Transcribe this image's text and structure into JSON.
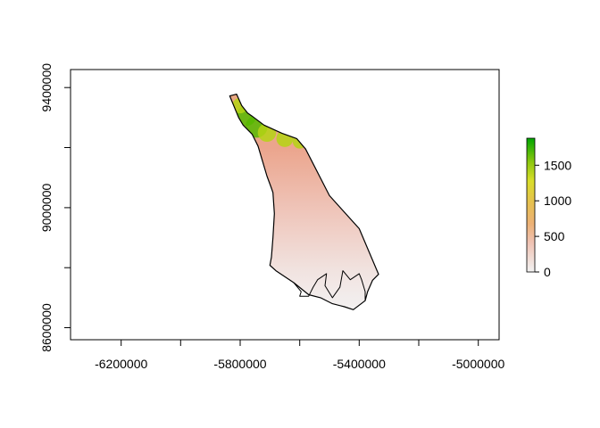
{
  "chart_data": {
    "type": "heatmap",
    "title": "",
    "xlabel": "",
    "ylabel": "",
    "xlim": [
      -6370000,
      -4930000
    ],
    "ylim": [
      8560000,
      9460000
    ],
    "x_ticks": [
      {
        "value": -6200000,
        "label": "-6200000"
      },
      {
        "value": -6000000,
        "label": ""
      },
      {
        "value": -5800000,
        "label": "-5800000"
      },
      {
        "value": -5600000,
        "label": ""
      },
      {
        "value": -5400000,
        "label": "-5400000"
      },
      {
        "value": -5200000,
        "label": ""
      },
      {
        "value": -5000000,
        "label": "-5000000"
      }
    ],
    "y_ticks": [
      {
        "value": 8600000,
        "label": "8600000"
      },
      {
        "value": 8800000,
        "label": ""
      },
      {
        "value": 9000000,
        "label": "9000000"
      },
      {
        "value": 9200000,
        "label": ""
      },
      {
        "value": 9400000,
        "label": "9400000"
      }
    ],
    "legend": {
      "placement": "right",
      "range": [
        0,
        1880
      ],
      "ticks": [
        {
          "value": 0,
          "label": "0"
        },
        {
          "value": 500,
          "label": "500"
        },
        {
          "value": 1000,
          "label": "1000"
        },
        {
          "value": 1500,
          "label": "1500"
        }
      ],
      "palette": [
        "#f2f2f2",
        "#efc2b3",
        "#ecb176",
        "#e6c14f",
        "#d9dd2a",
        "#8ec80f",
        "#00a600"
      ]
    },
    "region_outline": [
      [
        -5835000,
        9372000
      ],
      [
        -5812000,
        9378000
      ],
      [
        -5795000,
        9340000
      ],
      [
        -5775000,
        9315000
      ],
      [
        -5760000,
        9305000
      ],
      [
        -5720000,
        9275000
      ],
      [
        -5660000,
        9248000
      ],
      [
        -5610000,
        9230000
      ],
      [
        -5580000,
        9195000
      ],
      [
        -5500000,
        9040000
      ],
      [
        -5400000,
        8930000
      ],
      [
        -5335000,
        8778000
      ],
      [
        -5355000,
        8758000
      ],
      [
        -5372000,
        8720000
      ],
      [
        -5380000,
        8690000
      ],
      [
        -5420000,
        8660000
      ],
      [
        -5450000,
        8670000
      ],
      [
        -5490000,
        8680000
      ],
      [
        -5530000,
        8700000
      ],
      [
        -5570000,
        8710000
      ],
      [
        -5620000,
        8750000
      ],
      [
        -5680000,
        8790000
      ],
      [
        -5700000,
        8808000
      ],
      [
        -5695000,
        8835000
      ],
      [
        -5690000,
        8900000
      ],
      [
        -5685000,
        8980000
      ],
      [
        -5690000,
        9050000
      ],
      [
        -5695000,
        9065000
      ],
      [
        -5710000,
        9105000
      ],
      [
        -5725000,
        9155000
      ],
      [
        -5740000,
        9205000
      ],
      [
        -5760000,
        9245000
      ],
      [
        -5790000,
        9275000
      ],
      [
        -5805000,
        9300000
      ]
    ],
    "coastline_detail": [
      [
        -5620000,
        8750000
      ],
      [
        -5595000,
        8720000
      ],
      [
        -5600000,
        8705000
      ],
      [
        -5570000,
        8705000
      ],
      [
        -5555000,
        8735000
      ],
      [
        -5540000,
        8760000
      ],
      [
        -5510000,
        8780000
      ],
      [
        -5515000,
        8740000
      ],
      [
        -5490000,
        8700000
      ],
      [
        -5465000,
        8735000
      ],
      [
        -5455000,
        8790000
      ],
      [
        -5430000,
        8760000
      ],
      [
        -5400000,
        8780000
      ],
      [
        -5392000,
        8760000
      ],
      [
        -5380000,
        8720000
      ],
      [
        -5380000,
        8690000
      ]
    ],
    "highland_blobs": [
      {
        "x": -5780000,
        "y": 9305000,
        "value": 1500
      },
      {
        "x": -5745000,
        "y": 9270000,
        "value": 1650
      },
      {
        "x": -5710000,
        "y": 9250000,
        "value": 1400
      },
      {
        "x": -5650000,
        "y": 9230000,
        "value": 1300
      },
      {
        "x": -5800000,
        "y": 9340000,
        "value": 1200
      },
      {
        "x": -5600000,
        "y": 9220000,
        "value": 1100
      }
    ]
  }
}
